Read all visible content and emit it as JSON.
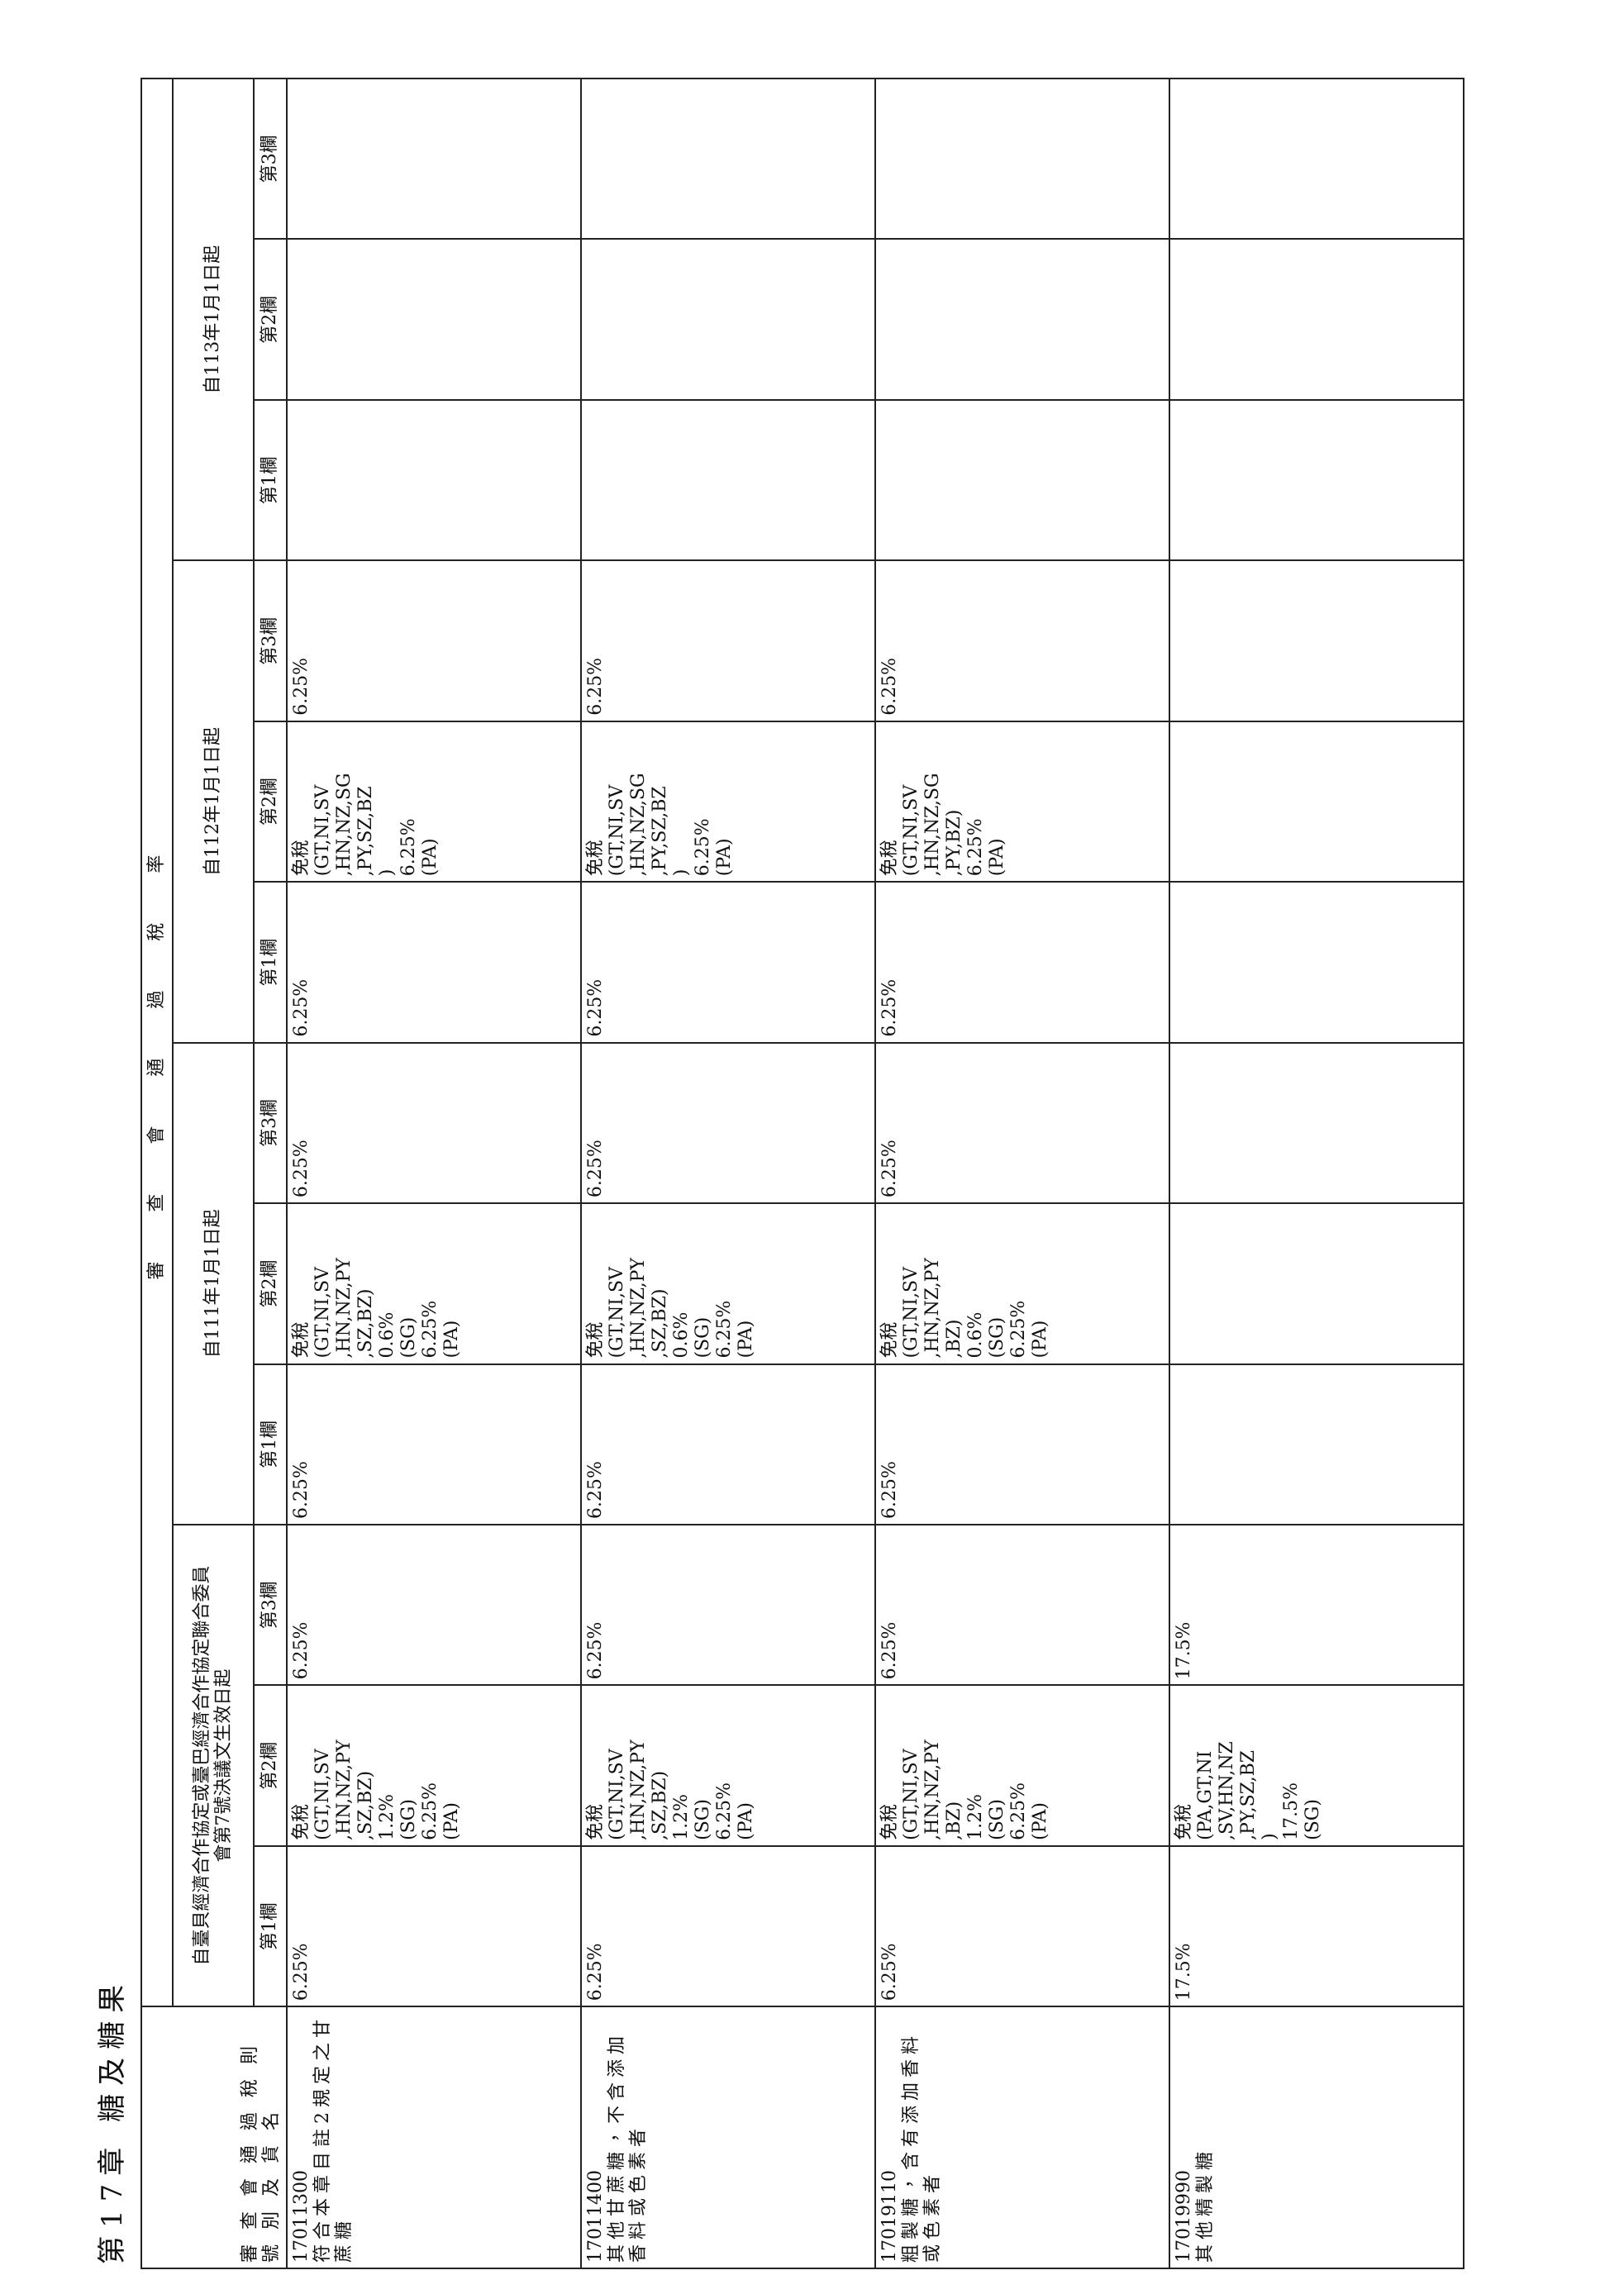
{
  "header": {
    "chapter_title": "第17章 糖及糖果"
  },
  "table": {
    "top_header": "審查會通過稅率",
    "first_col_header": "審查會通過稅則號別及貨名",
    "groups": [
      {
        "title": "自臺貝經濟合作協定或臺巴經濟合作協定聯合委員會第7號決議文生效日起",
        "columns": [
          "第1欄",
          "第2欄",
          "第3欄"
        ]
      },
      {
        "title": "自111年1月1日起",
        "columns": [
          "第1欄",
          "第2欄",
          "第3欄"
        ]
      },
      {
        "title": "自112年1月1日起",
        "columns": [
          "第1欄",
          "第2欄",
          "第3欄"
        ]
      },
      {
        "title": "自113年1月1日起",
        "columns": [
          "第1欄",
          "第2欄",
          "第3欄"
        ]
      }
    ],
    "rows": [
      {
        "code": "17011300",
        "name": "符合本章目註2規定之甘蔗糖",
        "cells": [
          "6.25%",
          "免稅\n(GT,NI,SV\n,HN,NZ,PY\n,SZ,BZ)\n1.2%\n(SG)\n6.25%\n(PA)",
          "6.25%",
          "6.25%",
          "免稅\n(GT,NI,SV\n,HN,NZ,PY\n,SZ,BZ)\n0.6%\n(SG)\n6.25%\n(PA)",
          "6.25%",
          "6.25%",
          "免稅\n(GT,NI,SV\n,HN,NZ,SG\n,PY,SZ,BZ\n)\n6.25%\n(PA)",
          "6.25%",
          "",
          "",
          ""
        ]
      },
      {
        "code": "17011400",
        "name": "其他甘蔗糖，不含添加香料或色素者",
        "cells": [
          "6.25%",
          "免稅\n(GT,NI,SV\n,HN,NZ,PY\n,SZ,BZ)\n1.2%\n(SG)\n6.25%\n(PA)",
          "6.25%",
          "6.25%",
          "免稅\n(GT,NI,SV\n,HN,NZ,PY\n,SZ,BZ)\n0.6%\n(SG)\n6.25%\n(PA)",
          "6.25%",
          "6.25%",
          "免稅\n(GT,NI,SV\n,HN,NZ,SG\n,PY,SZ,BZ\n)\n6.25%\n(PA)",
          "6.25%",
          "",
          "",
          ""
        ]
      },
      {
        "code": "17019110",
        "name": "粗製糖，含有添加香料或色素者",
        "cells": [
          "6.25%",
          "免稅\n(GT,NI,SV\n,HN,NZ,PY\n,BZ)\n1.2%\n(SG)\n6.25%\n(PA)",
          "6.25%",
          "6.25%",
          "免稅\n(GT,NI,SV\n,HN,NZ,PY\n,BZ)\n0.6%\n(SG)\n6.25%\n(PA)",
          "6.25%",
          "6.25%",
          "免稅\n(GT,NI,SV\n,HN,NZ,SG\n,PY,BZ)\n6.25%\n(PA)",
          "6.25%",
          "",
          "",
          ""
        ]
      },
      {
        "code": "17019990",
        "name": "其他精製糖",
        "cells": [
          "17.5%",
          "免稅\n(PA,GT,NI\n,SV,HN,NZ\n,PY,SZ,BZ\n)\n17.5%\n(SG)",
          "17.5%",
          "",
          "",
          "",
          "",
          "",
          "",
          "",
          "",
          ""
        ]
      }
    ]
  }
}
